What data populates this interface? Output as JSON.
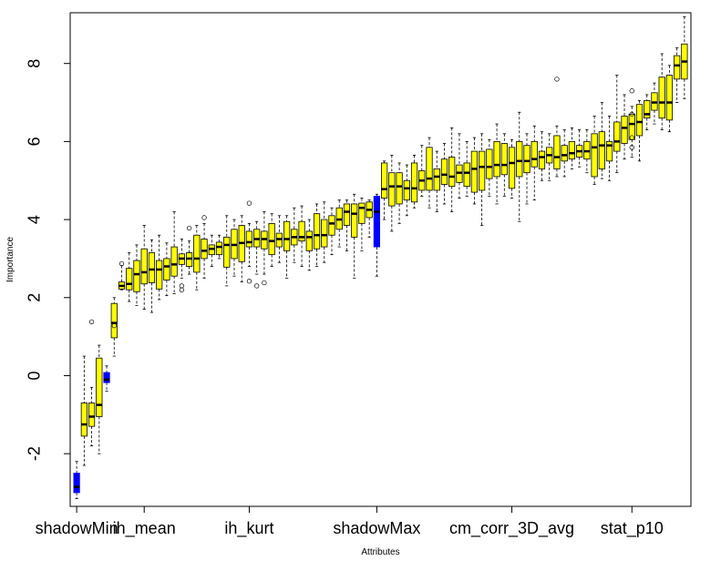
{
  "chart_data": {
    "type": "boxplot",
    "xlabel": "Attributes",
    "ylabel": "Importance",
    "ylim": [
      -3.35,
      9.3
    ],
    "y_ticks": [
      -2,
      0,
      2,
      4,
      6,
      8
    ],
    "x_tick_labels": [
      {
        "label": "shadowMin",
        "index": 1
      },
      {
        "label": "ih_mean",
        "index": 10
      },
      {
        "label": "ih_kurt",
        "index": 24
      },
      {
        "label": "shadowMax",
        "index": 41
      },
      {
        "label": "cm_corr_3D_avg",
        "index": 59
      },
      {
        "label": "stat_p10",
        "index": 75
      }
    ],
    "colors": {
      "real_attribute": "#ffff00",
      "shadow_attribute": "#0000ff",
      "outline": "#000000"
    },
    "series": [
      {
        "index": 1,
        "shadow": true,
        "min": -3.15,
        "q1": -3.0,
        "median": -2.85,
        "q3": -2.5,
        "max": -2.2,
        "outliers": []
      },
      {
        "index": 2,
        "shadow": false,
        "min": -2.3,
        "q1": -1.55,
        "median": -1.25,
        "q3": -0.7,
        "max": 0.5,
        "outliers": []
      },
      {
        "index": 3,
        "shadow": false,
        "min": -1.8,
        "q1": -1.3,
        "median": -1.05,
        "q3": -0.7,
        "max": -0.3,
        "outliers": [
          1.38
        ]
      },
      {
        "index": 4,
        "shadow": false,
        "min": -2.0,
        "q1": -1.05,
        "median": -0.75,
        "q3": 0.45,
        "max": 0.78,
        "outliers": []
      },
      {
        "index": 5,
        "shadow": true,
        "min": -0.4,
        "q1": -0.18,
        "median": -0.1,
        "q3": 0.08,
        "max": 0.25,
        "outliers": []
      },
      {
        "index": 6,
        "shadow": false,
        "min": 0.5,
        "q1": 0.97,
        "median": 1.35,
        "q3": 1.85,
        "max": 2.0,
        "outliers": [
          1.28
        ]
      },
      {
        "index": 7,
        "shadow": false,
        "min": 2.2,
        "q1": 2.22,
        "median": 2.3,
        "q3": 2.4,
        "max": 2.82,
        "outliers": [
          2.87
        ]
      },
      {
        "index": 8,
        "shadow": false,
        "min": 1.9,
        "q1": 2.2,
        "median": 2.35,
        "q3": 2.75,
        "max": 3.15,
        "outliers": []
      },
      {
        "index": 9,
        "shadow": false,
        "min": 1.8,
        "q1": 2.15,
        "median": 2.6,
        "q3": 2.95,
        "max": 3.35,
        "outliers": []
      },
      {
        "index": 10,
        "shadow": false,
        "min": 1.7,
        "q1": 2.35,
        "median": 2.65,
        "q3": 3.25,
        "max": 3.85,
        "outliers": []
      },
      {
        "index": 11,
        "shadow": false,
        "min": 1.62,
        "q1": 2.38,
        "median": 2.72,
        "q3": 3.15,
        "max": 3.48,
        "outliers": []
      },
      {
        "index": 12,
        "shadow": false,
        "min": 1.95,
        "q1": 2.22,
        "median": 2.72,
        "q3": 2.95,
        "max": 3.6,
        "outliers": []
      },
      {
        "index": 13,
        "shadow": false,
        "min": 2.05,
        "q1": 2.45,
        "median": 2.8,
        "q3": 3.0,
        "max": 3.4,
        "outliers": []
      },
      {
        "index": 14,
        "shadow": false,
        "min": 2.1,
        "q1": 2.55,
        "median": 2.85,
        "q3": 3.3,
        "max": 4.2,
        "outliers": []
      },
      {
        "index": 15,
        "shadow": false,
        "min": 2.5,
        "q1": 2.85,
        "median": 3.0,
        "q3": 3.12,
        "max": 3.5,
        "outliers": [
          2.3,
          2.2
        ]
      },
      {
        "index": 16,
        "shadow": false,
        "min": 2.6,
        "q1": 2.8,
        "median": 3.0,
        "q3": 3.15,
        "max": 3.45,
        "outliers": [
          3.78
        ]
      },
      {
        "index": 17,
        "shadow": false,
        "min": 2.2,
        "q1": 2.65,
        "median": 3.0,
        "q3": 3.6,
        "max": 3.85,
        "outliers": []
      },
      {
        "index": 18,
        "shadow": false,
        "min": 2.5,
        "q1": 3.0,
        "median": 3.2,
        "q3": 3.5,
        "max": 3.9,
        "outliers": [
          4.05
        ]
      },
      {
        "index": 19,
        "shadow": false,
        "min": 2.8,
        "q1": 3.1,
        "median": 3.25,
        "q3": 3.35,
        "max": 3.6,
        "outliers": []
      },
      {
        "index": 20,
        "shadow": false,
        "min": 3.0,
        "q1": 3.1,
        "median": 3.3,
        "q3": 3.42,
        "max": 3.6,
        "outliers": []
      },
      {
        "index": 21,
        "shadow": false,
        "min": 2.3,
        "q1": 2.78,
        "median": 3.35,
        "q3": 3.55,
        "max": 4.1,
        "outliers": []
      },
      {
        "index": 22,
        "shadow": false,
        "min": 2.55,
        "q1": 3.0,
        "median": 3.35,
        "q3": 3.75,
        "max": 4.0,
        "outliers": []
      },
      {
        "index": 23,
        "shadow": false,
        "min": 2.4,
        "q1": 2.92,
        "median": 3.4,
        "q3": 3.85,
        "max": 4.1,
        "outliers": []
      },
      {
        "index": 24,
        "shadow": false,
        "min": 2.8,
        "q1": 3.3,
        "median": 3.42,
        "q3": 3.7,
        "max": 3.9,
        "outliers": [
          4.42,
          2.42
        ]
      },
      {
        "index": 25,
        "shadow": false,
        "min": 2.6,
        "q1": 3.3,
        "median": 3.5,
        "q3": 3.75,
        "max": 3.95,
        "outliers": [
          2.3
        ]
      },
      {
        "index": 26,
        "shadow": false,
        "min": 2.6,
        "q1": 3.25,
        "median": 3.5,
        "q3": 3.7,
        "max": 4.2,
        "outliers": [
          2.38
        ]
      },
      {
        "index": 27,
        "shadow": false,
        "min": 2.8,
        "q1": 3.1,
        "median": 3.45,
        "q3": 3.9,
        "max": 4.15,
        "outliers": []
      },
      {
        "index": 28,
        "shadow": false,
        "min": 2.9,
        "q1": 3.3,
        "median": 3.5,
        "q3": 3.65,
        "max": 4.1,
        "outliers": []
      },
      {
        "index": 29,
        "shadow": false,
        "min": 2.5,
        "q1": 3.2,
        "median": 3.5,
        "q3": 3.95,
        "max": 4.1,
        "outliers": []
      },
      {
        "index": 30,
        "shadow": false,
        "min": 2.9,
        "q1": 3.35,
        "median": 3.55,
        "q3": 3.75,
        "max": 4.3,
        "outliers": []
      },
      {
        "index": 31,
        "shadow": false,
        "min": 2.8,
        "q1": 3.45,
        "median": 3.55,
        "q3": 3.95,
        "max": 4.35,
        "outliers": []
      },
      {
        "index": 32,
        "shadow": false,
        "min": 2.7,
        "q1": 3.2,
        "median": 3.55,
        "q3": 3.7,
        "max": 4.0,
        "outliers": []
      },
      {
        "index": 33,
        "shadow": false,
        "min": 2.8,
        "q1": 3.25,
        "median": 3.6,
        "q3": 4.15,
        "max": 4.4,
        "outliers": []
      },
      {
        "index": 34,
        "shadow": false,
        "min": 2.9,
        "q1": 3.3,
        "median": 3.6,
        "q3": 4.0,
        "max": 4.45,
        "outliers": []
      },
      {
        "index": 35,
        "shadow": false,
        "min": 3.1,
        "q1": 3.6,
        "median": 3.9,
        "q3": 4.1,
        "max": 4.3,
        "outliers": []
      },
      {
        "index": 36,
        "shadow": false,
        "min": 3.3,
        "q1": 3.75,
        "median": 4.0,
        "q3": 4.3,
        "max": 4.5,
        "outliers": []
      },
      {
        "index": 37,
        "shadow": false,
        "min": 3.2,
        "q1": 3.85,
        "median": 4.2,
        "q3": 4.4,
        "max": 4.5,
        "outliers": []
      },
      {
        "index": 38,
        "shadow": false,
        "min": 2.5,
        "q1": 3.55,
        "median": 4.15,
        "q3": 4.4,
        "max": 4.65,
        "outliers": []
      },
      {
        "index": 39,
        "shadow": false,
        "min": 3.2,
        "q1": 3.9,
        "median": 4.3,
        "q3": 4.42,
        "max": 4.55,
        "outliers": []
      },
      {
        "index": 40,
        "shadow": false,
        "min": 3.55,
        "q1": 4.05,
        "median": 4.25,
        "q3": 4.45,
        "max": 4.5,
        "outliers": []
      },
      {
        "index": 41,
        "shadow": true,
        "min": 2.55,
        "q1": 3.3,
        "median": 4.2,
        "q3": 4.6,
        "max": 4.65,
        "outliers": []
      },
      {
        "index": 42,
        "shadow": false,
        "min": 4.0,
        "q1": 4.55,
        "median": 4.78,
        "q3": 5.45,
        "max": 5.5,
        "outliers": []
      },
      {
        "index": 43,
        "shadow": false,
        "min": 3.7,
        "q1": 4.35,
        "median": 4.85,
        "q3": 5.2,
        "max": 5.65,
        "outliers": []
      },
      {
        "index": 44,
        "shadow": false,
        "min": 3.9,
        "q1": 4.4,
        "median": 4.85,
        "q3": 5.2,
        "max": 5.45,
        "outliers": []
      },
      {
        "index": 45,
        "shadow": false,
        "min": 4.1,
        "q1": 4.5,
        "median": 4.8,
        "q3": 5.0,
        "max": 5.4,
        "outliers": []
      },
      {
        "index": 46,
        "shadow": false,
        "min": 4.3,
        "q1": 4.45,
        "median": 4.8,
        "q3": 5.45,
        "max": 5.65,
        "outliers": []
      },
      {
        "index": 47,
        "shadow": false,
        "min": 4.6,
        "q1": 4.75,
        "median": 5.0,
        "q3": 5.25,
        "max": 5.9,
        "outliers": []
      },
      {
        "index": 48,
        "shadow": false,
        "min": 4.3,
        "q1": 4.75,
        "median": 5.05,
        "q3": 5.85,
        "max": 6.1,
        "outliers": []
      },
      {
        "index": 49,
        "shadow": false,
        "min": 4.2,
        "q1": 4.75,
        "median": 5.1,
        "q3": 5.3,
        "max": 5.75,
        "outliers": []
      },
      {
        "index": 50,
        "shadow": false,
        "min": 4.4,
        "q1": 4.9,
        "median": 5.15,
        "q3": 5.55,
        "max": 5.95,
        "outliers": []
      },
      {
        "index": 51,
        "shadow": false,
        "min": 4.2,
        "q1": 4.85,
        "median": 5.1,
        "q3": 5.6,
        "max": 6.35,
        "outliers": []
      },
      {
        "index": 52,
        "shadow": false,
        "min": 4.55,
        "q1": 4.95,
        "median": 5.2,
        "q3": 5.4,
        "max": 6.2,
        "outliers": []
      },
      {
        "index": 53,
        "shadow": false,
        "min": 4.6,
        "q1": 4.85,
        "median": 5.2,
        "q3": 5.45,
        "max": 6.0,
        "outliers": []
      },
      {
        "index": 54,
        "shadow": false,
        "min": 4.4,
        "q1": 4.7,
        "median": 5.3,
        "q3": 5.75,
        "max": 6.1,
        "outliers": []
      },
      {
        "index": 55,
        "shadow": false,
        "min": 3.85,
        "q1": 4.75,
        "median": 5.35,
        "q3": 5.75,
        "max": 6.2,
        "outliers": []
      },
      {
        "index": 56,
        "shadow": false,
        "min": 4.6,
        "q1": 5.05,
        "median": 5.35,
        "q3": 5.8,
        "max": 6.05,
        "outliers": []
      },
      {
        "index": 57,
        "shadow": false,
        "min": 4.4,
        "q1": 5.1,
        "median": 5.4,
        "q3": 6.0,
        "max": 6.45,
        "outliers": []
      },
      {
        "index": 58,
        "shadow": false,
        "min": 4.6,
        "q1": 5.15,
        "median": 5.4,
        "q3": 5.95,
        "max": 6.2,
        "outliers": []
      },
      {
        "index": 59,
        "shadow": false,
        "min": 4.55,
        "q1": 4.8,
        "median": 5.45,
        "q3": 5.85,
        "max": 6.05,
        "outliers": []
      },
      {
        "index": 60,
        "shadow": false,
        "min": 3.95,
        "q1": 5.1,
        "median": 5.5,
        "q3": 6.0,
        "max": 6.75,
        "outliers": []
      },
      {
        "index": 61,
        "shadow": false,
        "min": 4.4,
        "q1": 5.2,
        "median": 5.5,
        "q3": 5.9,
        "max": 6.2,
        "outliers": []
      },
      {
        "index": 62,
        "shadow": false,
        "min": 4.5,
        "q1": 5.35,
        "median": 5.55,
        "q3": 6.0,
        "max": 6.4,
        "outliers": []
      },
      {
        "index": 63,
        "shadow": false,
        "min": 5.0,
        "q1": 5.3,
        "median": 5.6,
        "q3": 5.75,
        "max": 6.25,
        "outliers": []
      },
      {
        "index": 64,
        "shadow": false,
        "min": 5.0,
        "q1": 5.45,
        "median": 5.65,
        "q3": 5.85,
        "max": 6.2,
        "outliers": []
      },
      {
        "index": 65,
        "shadow": false,
        "min": 5.1,
        "q1": 5.3,
        "median": 5.6,
        "q3": 6.15,
        "max": 6.4,
        "outliers": [
          7.6
        ]
      },
      {
        "index": 66,
        "shadow": false,
        "min": 5.1,
        "q1": 5.5,
        "median": 5.65,
        "q3": 5.9,
        "max": 6.3,
        "outliers": []
      },
      {
        "index": 67,
        "shadow": false,
        "min": 5.3,
        "q1": 5.55,
        "median": 5.7,
        "q3": 6.0,
        "max": 6.35,
        "outliers": []
      },
      {
        "index": 68,
        "shadow": false,
        "min": 5.35,
        "q1": 5.6,
        "median": 5.75,
        "q3": 5.9,
        "max": 6.3,
        "outliers": []
      },
      {
        "index": 69,
        "shadow": false,
        "min": 5.2,
        "q1": 5.55,
        "median": 5.75,
        "q3": 6.0,
        "max": 6.3,
        "outliers": []
      },
      {
        "index": 70,
        "shadow": false,
        "min": 4.9,
        "q1": 5.1,
        "median": 5.85,
        "q3": 6.2,
        "max": 6.65,
        "outliers": []
      },
      {
        "index": 71,
        "shadow": false,
        "min": 5.05,
        "q1": 5.3,
        "median": 5.9,
        "q3": 6.25,
        "max": 7.0,
        "outliers": []
      },
      {
        "index": 72,
        "shadow": false,
        "min": 5.0,
        "q1": 5.5,
        "median": 5.9,
        "q3": 6.0,
        "max": 6.65,
        "outliers": []
      },
      {
        "index": 73,
        "shadow": false,
        "min": 5.2,
        "q1": 5.75,
        "median": 6.0,
        "q3": 6.5,
        "max": 7.7,
        "outliers": []
      },
      {
        "index": 74,
        "shadow": false,
        "min": 5.55,
        "q1": 5.95,
        "median": 6.35,
        "q3": 6.65,
        "max": 7.2,
        "outliers": []
      },
      {
        "index": 75,
        "shadow": false,
        "min": 5.6,
        "q1": 6.05,
        "median": 6.45,
        "q3": 6.7,
        "max": 6.9,
        "outliers": [
          7.3,
          6.7,
          6.1,
          5.85
        ]
      },
      {
        "index": 76,
        "shadow": false,
        "min": 5.5,
        "q1": 6.15,
        "median": 6.5,
        "q3": 6.95,
        "max": 7.05,
        "outliers": []
      },
      {
        "index": 77,
        "shadow": false,
        "min": 6.3,
        "q1": 6.6,
        "median": 6.7,
        "q3": 7.05,
        "max": 7.2,
        "outliers": []
      },
      {
        "index": 78,
        "shadow": false,
        "min": 6.45,
        "q1": 6.8,
        "median": 7.0,
        "q3": 7.25,
        "max": 7.5,
        "outliers": []
      },
      {
        "index": 79,
        "shadow": false,
        "min": 6.3,
        "q1": 6.6,
        "median": 7.0,
        "q3": 7.65,
        "max": 8.25,
        "outliers": []
      },
      {
        "index": 80,
        "shadow": false,
        "min": 6.25,
        "q1": 6.55,
        "median": 7.0,
        "q3": 7.7,
        "max": 7.95,
        "outliers": []
      },
      {
        "index": 81,
        "shadow": false,
        "min": 7.0,
        "q1": 7.6,
        "median": 7.95,
        "q3": 8.2,
        "max": 8.4,
        "outliers": []
      },
      {
        "index": 82,
        "shadow": false,
        "min": 7.1,
        "q1": 7.6,
        "median": 8.05,
        "q3": 8.5,
        "max": 9.2,
        "outliers": []
      }
    ]
  }
}
